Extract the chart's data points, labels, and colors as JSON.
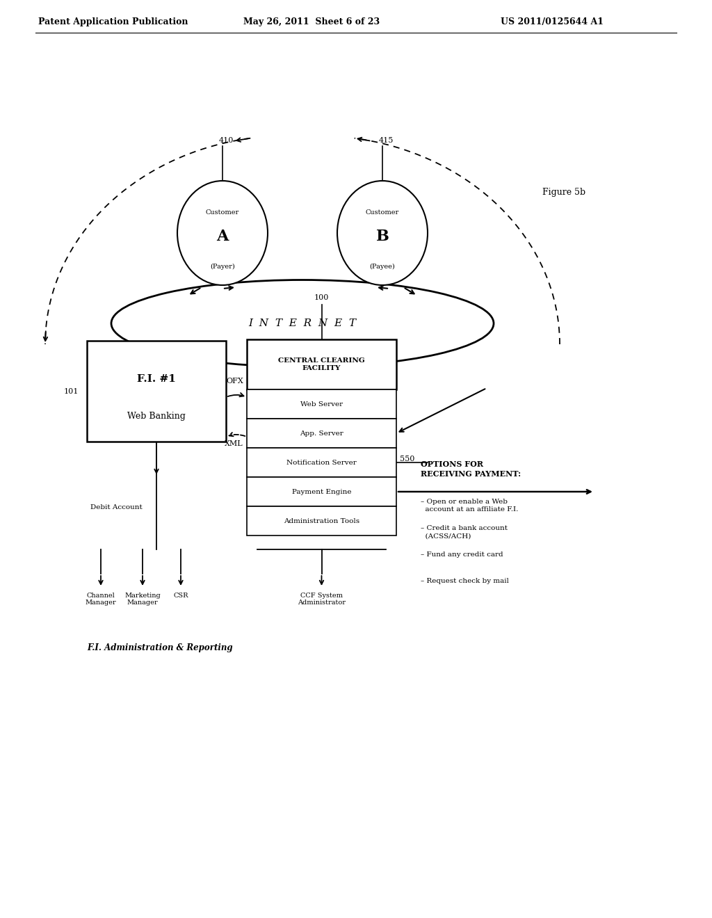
{
  "bg_color": "#ffffff",
  "header_left": "Patent Application Publication",
  "header_mid": "May 26, 2011  Sheet 6 of 23",
  "header_right": "US 2011/0125644 A1",
  "figure_label": "Figure 5b",
  "customer_a_label": "410",
  "customer_b_label": "415",
  "internet_text": "I  N  T  E  R  N  E  T",
  "fi_label": "101",
  "ccf_label": "100",
  "ccf_title": "CENTRAL CLEARING\nFACILITY",
  "server_rows": [
    "Web Server",
    "App. Server",
    "Notification Server",
    "Payment Engine",
    "Administration Tools"
  ],
  "debit_text": "Debit Account",
  "ofx_label": "OFX",
  "xml_label": "XML",
  "arrow_550": "550",
  "options_title": "OPTIONS FOR\nRECEIVING PAYMENT:",
  "options_list": [
    "– Open or enable a Web\n  account at an affiliate F.I.",
    "– Credit a bank account\n  (ACSS/ACH)",
    "– Fund any credit card",
    "– Request check by mail"
  ],
  "bottom_labels": [
    "Channel\nManager",
    "Marketing\nManager",
    "CSR",
    "CCF System\nAdministrator"
  ],
  "footer_text": "F.I. Administration & Reporting"
}
